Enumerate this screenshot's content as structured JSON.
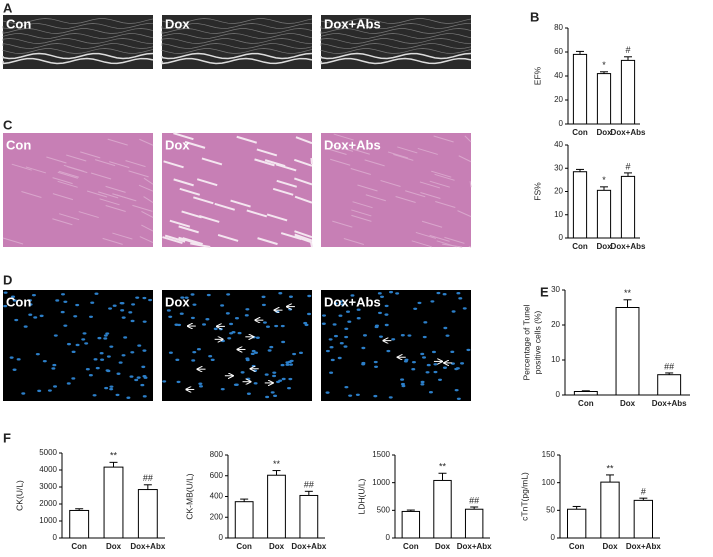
{
  "panel_letters": [
    "A",
    "B",
    "C",
    "D",
    "E",
    "F"
  ],
  "image_rows": [
    {
      "labels": [
        "Con",
        "Dox",
        "Dox+Abs"
      ]
    },
    {
      "labels": [
        "Con",
        "Dox",
        "Dox+Abs"
      ]
    },
    {
      "labels": [
        "Con",
        "Dox",
        "Dox+Abs"
      ]
    }
  ],
  "chart_data": [
    {
      "type": "bar",
      "ylabel": "EF%",
      "categories": [
        "Con",
        "Dox",
        "Dox+Abs"
      ],
      "values": [
        58,
        42,
        53
      ],
      "errors": [
        2.5,
        1.5,
        3
      ],
      "annotations": [
        null,
        "*",
        "#"
      ],
      "ylim": [
        0,
        80
      ],
      "yticks": [
        0,
        20,
        40,
        60,
        80
      ],
      "color": "#ffffff"
    },
    {
      "type": "bar",
      "ylabel": "FS%",
      "categories": [
        "Con",
        "Dox",
        "Dox+Abs"
      ],
      "values": [
        28.5,
        20.5,
        26.5
      ],
      "errors": [
        1,
        1.5,
        1.5
      ],
      "annotations": [
        null,
        "*",
        "#"
      ],
      "ylim": [
        0,
        40
      ],
      "yticks": [
        0,
        10,
        20,
        30,
        40
      ],
      "color": "#ffffff"
    },
    {
      "type": "bar",
      "ylabel": [
        "Percentage of Tunel",
        "positive cells (%)"
      ],
      "categories": [
        "Con",
        "Dox",
        "Dox+Abs"
      ],
      "values": [
        1,
        25,
        5.8
      ],
      "errors": [
        0.2,
        2.2,
        0.5
      ],
      "annotations": [
        null,
        "**",
        "##"
      ],
      "ylim": [
        0,
        30
      ],
      "yticks": [
        0,
        10,
        20,
        30
      ],
      "color": "#ffffff"
    },
    {
      "type": "bar",
      "ylabel": "CK(U/L)",
      "categories": [
        "Con",
        "Dox",
        "Dox+Abx"
      ],
      "values": [
        1620,
        4170,
        2850
      ],
      "errors": [
        100,
        280,
        280
      ],
      "annotations": [
        null,
        "**",
        "##"
      ],
      "ylim": [
        0,
        5000
      ],
      "yticks": [
        0,
        1000,
        2000,
        3000,
        4000,
        5000
      ],
      "color": "#ffffff"
    },
    {
      "type": "bar",
      "ylabel": "CK-MB(U/L)",
      "categories": [
        "Con",
        "Dox",
        "Dox+Abx"
      ],
      "values": [
        350,
        605,
        410
      ],
      "errors": [
        25,
        45,
        40
      ],
      "annotations": [
        null,
        "**",
        "##"
      ],
      "ylim": [
        0,
        800
      ],
      "yticks": [
        0,
        200,
        400,
        600,
        800
      ],
      "color": "#ffffff"
    },
    {
      "type": "bar",
      "ylabel": "LDH(U/L)",
      "categories": [
        "Con",
        "Dox",
        "Dox+Abx"
      ],
      "values": [
        480,
        1040,
        520
      ],
      "errors": [
        25,
        130,
        40
      ],
      "annotations": [
        null,
        "**",
        "##"
      ],
      "ylim": [
        0,
        1500
      ],
      "yticks": [
        0,
        500,
        1000,
        1500
      ],
      "color": "#ffffff"
    },
    {
      "type": "bar",
      "ylabel": "cTnT(pg/mL)",
      "categories": [
        "Con",
        "Dox",
        "Dox+Abx"
      ],
      "values": [
        52,
        101,
        68
      ],
      "errors": [
        5,
        13,
        4
      ],
      "annotations": [
        null,
        "**",
        "#"
      ],
      "ylim": [
        0,
        150
      ],
      "yticks": [
        0,
        50,
        100,
        150
      ],
      "color": "#ffffff"
    }
  ]
}
